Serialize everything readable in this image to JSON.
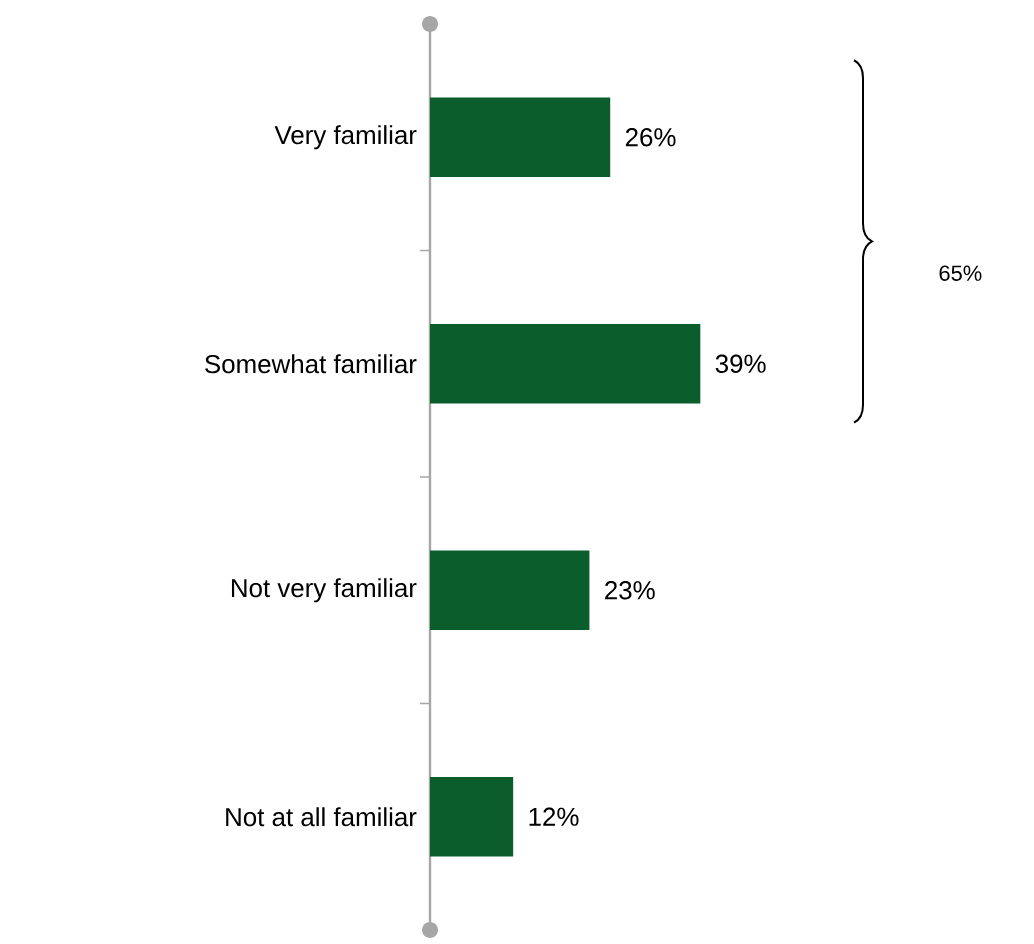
{
  "chart_data": {
    "type": "bar",
    "orientation": "horizontal",
    "categories": [
      "Very familiar",
      "Somewhat familiar",
      "Not very familiar",
      "Not at all familiar"
    ],
    "values": [
      26,
      39,
      23,
      12
    ],
    "value_labels": [
      "26%",
      "39%",
      "23%",
      "12%"
    ],
    "color": "#0b5d2c",
    "annotations": [
      "65%"
    ]
  }
}
